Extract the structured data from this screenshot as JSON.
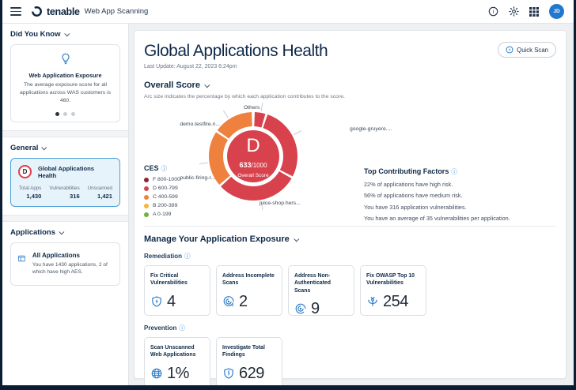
{
  "topbar": {
    "brand": "tenable",
    "product": "Web App Scanning",
    "avatar_initials": "JD"
  },
  "sidebar": {
    "did_you_know": {
      "title": "Did You Know",
      "card": {
        "title": "Web Application Exposure",
        "body": "The average exposure score for all applications across WAS customers is 460."
      }
    },
    "general": {
      "title": "General",
      "card": {
        "grade": "D",
        "title": "Global Applications Health",
        "stats": [
          {
            "label": "Total Apps",
            "value": "1,430"
          },
          {
            "label": "Vulnerabilities",
            "value": "316"
          },
          {
            "label": "Unscanned",
            "value": "1,421"
          }
        ]
      }
    },
    "applications": {
      "title": "Applications",
      "card": {
        "title": "All Applications",
        "body": "You have 1430 applications, 2 of which have high AES."
      }
    }
  },
  "main": {
    "title": "Global Applications Health",
    "last_update": "Last Update: August 22, 2023 6:24pm",
    "quick_scan": "Quick Scan",
    "overall_score_title": "Overall Score",
    "overall_score_subtitle": "Arc size indicates the percentage by which each application contributes to the score.",
    "top_factors": {
      "title": "Top Contributing Factors",
      "items": [
        "22% of applications have high risk.",
        "56% of applications have medium risk.",
        "You have 316 application vulnerabilities.",
        "You have an average of 35 vulnerabilities per application."
      ]
    },
    "manage_title": "Manage Your Application Exposure",
    "remediation": {
      "label": "Remediation",
      "cards": [
        {
          "title": "Fix Critical Vulnerabilities",
          "value": "4",
          "icon": "shield-bolt-icon"
        },
        {
          "title": "Address Incomplete Scans",
          "value": "2",
          "icon": "incomplete-scan-icon"
        },
        {
          "title": "Address Non-Authenticated Scans",
          "value": "9",
          "icon": "non-auth-scan-icon"
        },
        {
          "title": "Fix OWASP Top 10 Vulnerabilities",
          "value": "254",
          "icon": "wasp-icon"
        }
      ]
    },
    "prevention": {
      "label": "Prevention",
      "cards": [
        {
          "title": "Scan Unscanned Web Applications",
          "value": "1%",
          "icon": "globe-icon"
        },
        {
          "title": "Investigate Total Findings",
          "value": "629",
          "icon": "shield-findings-icon"
        }
      ]
    }
  },
  "chart_data": {
    "type": "pie",
    "title": "Overall Score",
    "center": {
      "grade": "D",
      "score": "633",
      "max_suffix": "/1000",
      "label": "Overall Score",
      "color": "#d8424d"
    },
    "segments": [
      {
        "name": "Others",
        "start": 2,
        "end": 16,
        "color": "#d8424d",
        "label_angle": 10
      },
      {
        "name": "google-gruyere....",
        "start": 19,
        "end": 117,
        "color": "#d8424d",
        "label_angle": 62
      },
      {
        "name": "juice-shop.hers...",
        "start": 120,
        "end": 227,
        "color": "#d8424d",
        "label_angle": 170
      },
      {
        "name": "public-firing-r...",
        "start": 230,
        "end": 303,
        "color": "#ef813e",
        "label_angle": 262
      },
      {
        "name": "demo.testfire.n...",
        "start": 306,
        "end": 358,
        "color": "#ef813e",
        "label_angle": 327
      }
    ],
    "legend": {
      "title": "CES",
      "items": [
        {
          "label": "F 800-1000",
          "color": "#8e2330"
        },
        {
          "label": "D 600-799",
          "color": "#d8424d"
        },
        {
          "label": "C 400-599",
          "color": "#ef813e"
        },
        {
          "label": "B 200-399",
          "color": "#f4b53f"
        },
        {
          "label": "A 0-199",
          "color": "#6cb33f"
        }
      ]
    }
  }
}
